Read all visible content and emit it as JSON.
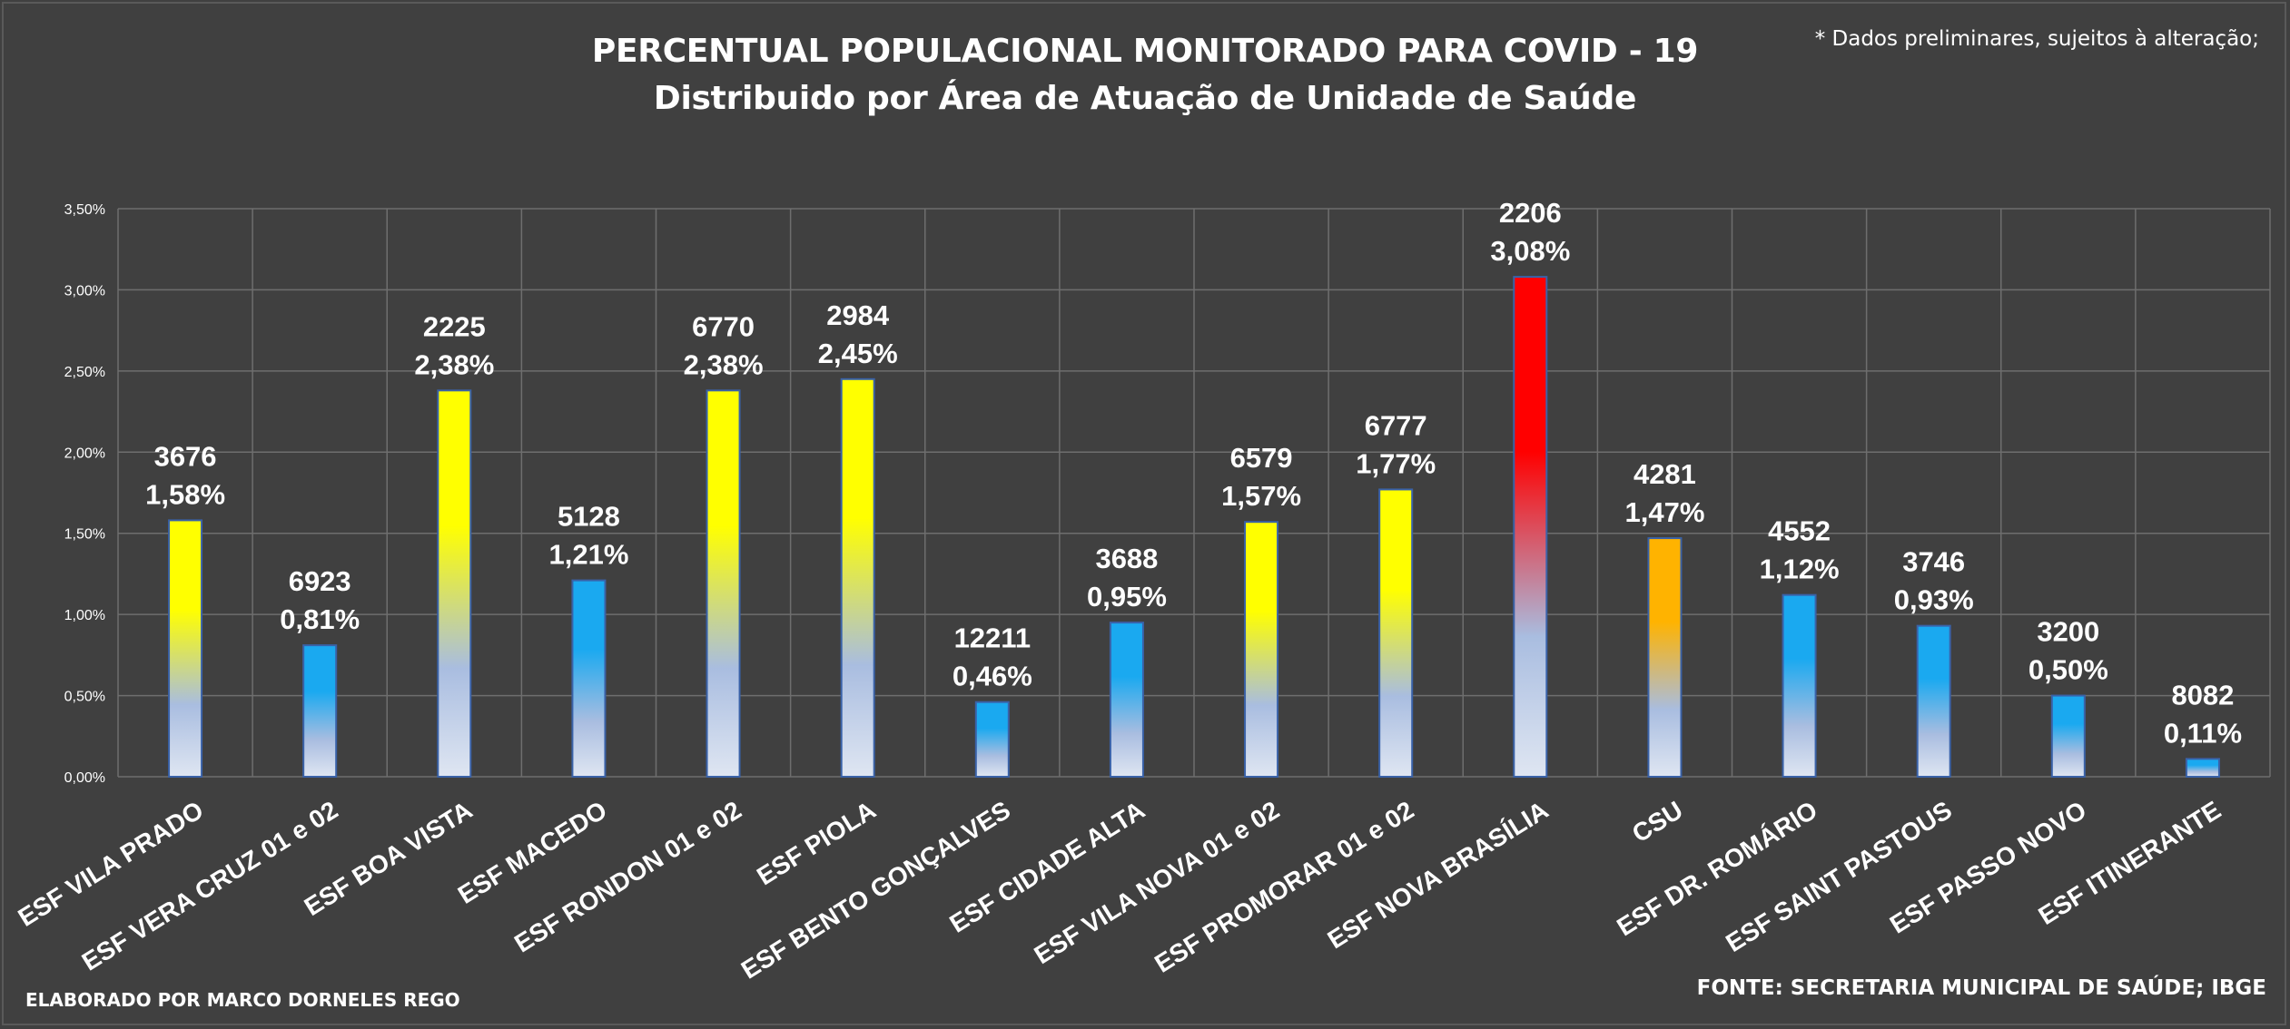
{
  "title_line1": "PERCENTUAL POPULACIONAL MONITORADO PARA COVID - 19",
  "title_line2": "Distribuido por Área de Atuação de Unidade de Saúde",
  "note": "* Dados preliminares, sujeitos à alteração;",
  "credit": "ELABORADO POR MARCO DORNELES REGO",
  "source": "FONTE: SECRETARIA MUNICIPAL DE SAÚDE; IBGE",
  "colors": {
    "background": "#404040",
    "grid": "#6e6e6e",
    "yellow": "#ffff00",
    "blue": "#1aa9f0",
    "red": "#ff0000",
    "orange": "#ffb300",
    "bar_bottom": "#dfe6f2"
  },
  "chart_data": {
    "type": "bar",
    "ylim": [
      0,
      0.035
    ],
    "yticks": [
      0,
      0.005,
      0.01,
      0.015,
      0.02,
      0.025,
      0.03,
      0.035
    ],
    "ytick_labels": [
      "0,00%",
      "0,50%",
      "1,00%",
      "1,50%",
      "2,00%",
      "2,50%",
      "3,00%",
      "3,50%"
    ],
    "grid": true,
    "categories": [
      "ESF VILA PRADO",
      "ESF VERA CRUZ 01 e 02",
      "ESF BOA VISTA",
      "ESF MACEDO",
      "ESF RONDON 01 e 02",
      "ESF PIOLA",
      "ESF BENTO GONÇALVES",
      "ESF CIDADE ALTA",
      "ESF VILA NOVA 01 e 02",
      "ESF PROMORAR 01 e 02",
      "ESF NOVA BRASÍLIA",
      "CSU",
      "ESF DR. ROMÁRIO",
      "ESF SAINT PASTOUS",
      "ESF PASSO NOVO",
      "ESF ITINERANTE"
    ],
    "values": [
      0.0158,
      0.0081,
      0.0238,
      0.0121,
      0.0238,
      0.0245,
      0.0046,
      0.0095,
      0.0157,
      0.0177,
      0.0308,
      0.0147,
      0.0112,
      0.0093,
      0.005,
      0.0011
    ],
    "value_labels": [
      "1,58%",
      "0,81%",
      "2,38%",
      "1,21%",
      "2,38%",
      "2,45%",
      "0,46%",
      "0,95%",
      "1,57%",
      "1,77%",
      "3,08%",
      "1,47%",
      "1,12%",
      "0,93%",
      "0,50%",
      "0,11%"
    ],
    "population_labels": [
      "3676",
      "6923",
      "2225",
      "5128",
      "6770",
      "2984",
      "12211",
      "3688",
      "6579",
      "6777",
      "2206",
      "4281",
      "4552",
      "3746",
      "3200",
      "8082"
    ],
    "bar_colors": [
      "yellow",
      "blue",
      "yellow",
      "blue",
      "yellow",
      "yellow",
      "blue",
      "blue",
      "yellow",
      "yellow",
      "red",
      "orange",
      "blue",
      "blue",
      "blue",
      "blue"
    ]
  }
}
